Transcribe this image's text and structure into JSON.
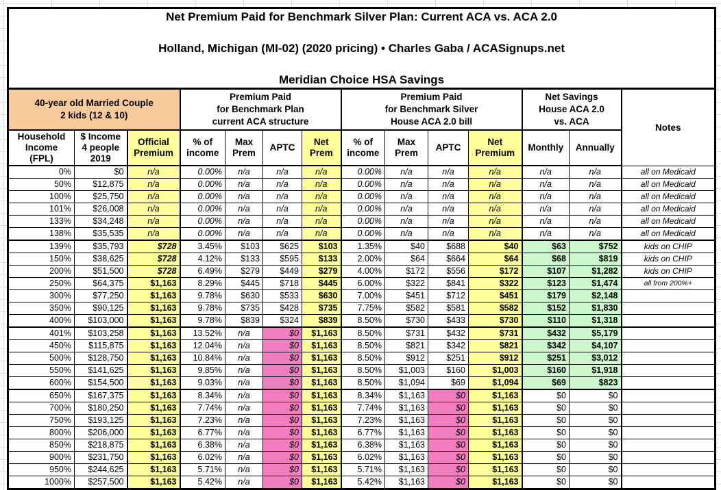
{
  "colors": {
    "group_header_orange": "#f9cb9c",
    "highlight_yellow": "#ffff9c",
    "zero_aptc_pink": "#f17ec0",
    "savings_green": "#ccf6cc",
    "border_black": "#000000"
  },
  "title": {
    "line1": "Net Premium Paid for Benchmark Silver Plan: Current ACA vs. ACA 2.0",
    "line2": "Holland, Michigan (MI-02) (2020 pricing) • Charles Gaba / ACASignups.net",
    "line3": "Meridian Choice HSA Savings"
  },
  "table": {
    "group_headers": [
      {
        "label": "40-year old Married Couple\n2 kids (12 & 10)",
        "span": 3
      },
      {
        "label": "Premium Paid\nfor Benchmark Plan\ncurrent ACA structure",
        "span": 4
      },
      {
        "label": "Premium Paid\nfor Benchmark Silver\nHouse ACA 2.0 bill",
        "span": 4
      },
      {
        "label": "Net Savings\nHouse ACA 2.0\nvs. ACA",
        "span": 2
      },
      {
        "label": "Notes",
        "span": 1
      }
    ],
    "columns": [
      {
        "key": "fpl",
        "label": "Household\nIncome\n(FPL)"
      },
      {
        "key": "income",
        "label": "$ Income\n4 people\n2019"
      },
      {
        "key": "official-premium",
        "label": "Official\nPremium",
        "highlight": true
      },
      {
        "key": "aca-pct-income",
        "label": "% of\nincome"
      },
      {
        "key": "aca-max-prem",
        "label": "Max\nPrem"
      },
      {
        "key": "aca-aptc",
        "label": "APTC"
      },
      {
        "key": "aca-net-prem",
        "label": "Net\nPrem",
        "highlight": true
      },
      {
        "key": "aca2-pct-income",
        "label": "% of\nincome"
      },
      {
        "key": "aca2-max-prem",
        "label": "Max\nPrem"
      },
      {
        "key": "aca2-aptc",
        "label": "APTC"
      },
      {
        "key": "aca2-net-premium",
        "label": "Net\nPremium",
        "highlight": true
      },
      {
        "key": "savings-monthly",
        "label": "Monthly"
      },
      {
        "key": "savings-annually",
        "label": "Annually"
      },
      {
        "key": "notes",
        "label": "Notes"
      }
    ],
    "section_breaks": [
      "139%",
      "401%",
      "650%"
    ],
    "rows": [
      [
        "0%",
        "$0",
        "n/a",
        "0.00%",
        "n/a",
        "n/a",
        "n/a",
        "0.00%",
        "n/a",
        "n/a",
        "n/a",
        "n/a",
        "n/a",
        "all on Medicaid"
      ],
      [
        "50%",
        "$12,875",
        "n/a",
        "0.00%",
        "n/a",
        "n/a",
        "n/a",
        "0.00%",
        "n/a",
        "n/a",
        "n/a",
        "n/a",
        "n/a",
        "all on Medicaid"
      ],
      [
        "100%",
        "$25,750",
        "n/a",
        "0.00%",
        "n/a",
        "n/a",
        "n/a",
        "0.00%",
        "n/a",
        "n/a",
        "n/a",
        "n/a",
        "n/a",
        "all on Medicaid"
      ],
      [
        "101%",
        "$26,008",
        "n/a",
        "0.00%",
        "n/a",
        "n/a",
        "n/a",
        "0.00%",
        "n/a",
        "n/a",
        "n/a",
        "n/a",
        "n/a",
        "all on Medicaid"
      ],
      [
        "133%",
        "$34,248",
        "n/a",
        "0.00%",
        "n/a",
        "n/a",
        "n/a",
        "0.00%",
        "n/a",
        "n/a",
        "n/a",
        "n/a",
        "n/a",
        "all on Medicaid"
      ],
      [
        "138%",
        "$35,535",
        "n/a",
        "0.00%",
        "n/a",
        "n/a",
        "n/a",
        "0.00%",
        "n/a",
        "n/a",
        "n/a",
        "n/a",
        "n/a",
        "all on Medicaid"
      ],
      [
        "139%",
        "$35,793",
        "$728",
        "3.45%",
        "$103",
        "$625",
        "$103",
        "1.35%",
        "$40",
        "$688",
        "$40",
        "$63",
        "$752",
        "kids on CHIP"
      ],
      [
        "150%",
        "$38,625",
        "$728",
        "4.12%",
        "$133",
        "$595",
        "$133",
        "2.00%",
        "$64",
        "$664",
        "$64",
        "$68",
        "$819",
        "kids on CHIP"
      ],
      [
        "200%",
        "$51,500",
        "$728",
        "6.49%",
        "$279",
        "$449",
        "$279",
        "4.00%",
        "$172",
        "$556",
        "$172",
        "$107",
        "$1,282",
        "kids on CHIP"
      ],
      [
        "250%",
        "$64,375",
        "$1,163",
        "8.29%",
        "$445",
        "$718",
        "$445",
        "6.00%",
        "$322",
        "$841",
        "$322",
        "$123",
        "$1,474",
        "all from 200%+"
      ],
      [
        "300%",
        "$77,250",
        "$1,163",
        "9.78%",
        "$630",
        "$533",
        "$630",
        "7.00%",
        "$451",
        "$712",
        "$451",
        "$179",
        "$2,148",
        ""
      ],
      [
        "350%",
        "$90,125",
        "$1,163",
        "9.78%",
        "$735",
        "$428",
        "$735",
        "7.75%",
        "$582",
        "$581",
        "$582",
        "$152",
        "$1,830",
        ""
      ],
      [
        "400%",
        "$103,000",
        "$1,163",
        "9.78%",
        "$839",
        "$324",
        "$839",
        "8.50%",
        "$730",
        "$433",
        "$730",
        "$110",
        "$1,318",
        ""
      ],
      [
        "401%",
        "$103,258",
        "$1,163",
        "13.52%",
        "n/a",
        "$0",
        "$1,163",
        "8.50%",
        "$731",
        "$432",
        "$731",
        "$432",
        "$5,179",
        ""
      ],
      [
        "450%",
        "$115,875",
        "$1,163",
        "12.04%",
        "n/a",
        "$0",
        "$1,163",
        "8.50%",
        "$821",
        "$342",
        "$821",
        "$342",
        "$4,107",
        ""
      ],
      [
        "500%",
        "$128,750",
        "$1,163",
        "10.84%",
        "n/a",
        "$0",
        "$1,163",
        "8.50%",
        "$912",
        "$251",
        "$912",
        "$251",
        "$3,012",
        ""
      ],
      [
        "550%",
        "$141,625",
        "$1,163",
        "9.85%",
        "n/a",
        "$0",
        "$1,163",
        "8.50%",
        "$1,003",
        "$160",
        "$1,003",
        "$160",
        "$1,918",
        ""
      ],
      [
        "600%",
        "$154,500",
        "$1,163",
        "9.03%",
        "n/a",
        "$0",
        "$1,163",
        "8.50%",
        "$1,094",
        "$69",
        "$1,094",
        "$69",
        "$823",
        ""
      ],
      [
        "650%",
        "$167,375",
        "$1,163",
        "8.34%",
        "n/a",
        "$0",
        "$1,163",
        "8.34%",
        "$1,163",
        "$0",
        "$1,163",
        "$0",
        "$0",
        ""
      ],
      [
        "700%",
        "$180,250",
        "$1,163",
        "7.74%",
        "n/a",
        "$0",
        "$1,163",
        "7.74%",
        "$1,163",
        "$0",
        "$1,163",
        "$0",
        "$0",
        ""
      ],
      [
        "750%",
        "$193,125",
        "$1,163",
        "7.23%",
        "n/a",
        "$0",
        "$1,163",
        "7.23%",
        "$1,163",
        "$0",
        "$1,163",
        "$0",
        "$0",
        ""
      ],
      [
        "800%",
        "$206,000",
        "$1,163",
        "6.77%",
        "n/a",
        "$0",
        "$1,163",
        "6.77%",
        "$1,163",
        "$0",
        "$1,163",
        "$0",
        "$0",
        ""
      ],
      [
        "850%",
        "$218,875",
        "$1,163",
        "6.38%",
        "n/a",
        "$0",
        "$1,163",
        "6.38%",
        "$1,163",
        "$0",
        "$1,163",
        "$0",
        "$0",
        ""
      ],
      [
        "900%",
        "$231,750",
        "$1,163",
        "6.02%",
        "n/a",
        "$0",
        "$1,163",
        "6.02%",
        "$1,163",
        "$0",
        "$1,163",
        "$0",
        "$0",
        ""
      ],
      [
        "950%",
        "$244,625",
        "$1,163",
        "5.71%",
        "n/a",
        "$0",
        "$1,163",
        "5.71%",
        "$1,163",
        "$0",
        "$1,163",
        "$0",
        "$0",
        ""
      ],
      [
        "1000%",
        "$257,500",
        "$1,163",
        "5.42%",
        "n/a",
        "$0",
        "$1,163",
        "5.42%",
        "$1,163",
        "$0",
        "$1,163",
        "$0",
        "$0",
        ""
      ]
    ]
  }
}
